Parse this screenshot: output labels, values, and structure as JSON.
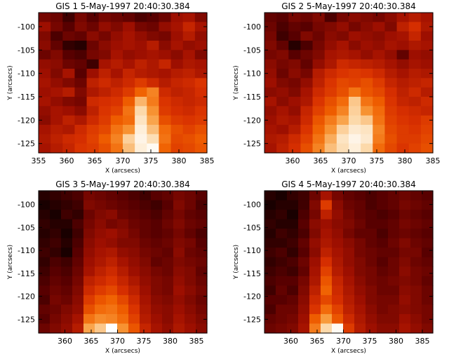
{
  "colors": {
    "background": "#ffffff",
    "axis": "#000000",
    "colormap": [
      "#000000",
      "#5a0000",
      "#a01000",
      "#d83000",
      "#f06000",
      "#f89838",
      "#fcd8a8",
      "#ffffff"
    ]
  },
  "chart_data": [
    {
      "type": "heatmap",
      "title": "GIS 1  5-May-1997 20:40:30.384",
      "xlabel": "X (arcsecs)",
      "ylabel": "Y (arcsecs)",
      "xlim": [
        355,
        385
      ],
      "ylim": [
        -127,
        -97
      ],
      "xticks": [
        355,
        360,
        365,
        370,
        375,
        380,
        385
      ],
      "yticks": [
        -125,
        -120,
        -115,
        -110,
        -105,
        -100
      ],
      "grid": false,
      "colormap": "red-temperature",
      "values": [
        [
          0.2,
          0.18,
          0.1,
          0.2,
          0.14,
          0.2,
          0.18,
          0.16,
          0.12,
          0.14,
          0.18,
          0.28,
          0.3,
          0.22
        ],
        [
          0.28,
          0.2,
          0.14,
          0.22,
          0.18,
          0.26,
          0.22,
          0.28,
          0.2,
          0.18,
          0.26,
          0.3,
          0.38,
          0.3
        ],
        [
          0.22,
          0.12,
          0.18,
          0.16,
          0.24,
          0.2,
          0.26,
          0.3,
          0.26,
          0.22,
          0.2,
          0.28,
          0.34,
          0.26
        ],
        [
          0.24,
          0.16,
          0.08,
          0.06,
          0.18,
          0.24,
          0.28,
          0.3,
          0.28,
          0.34,
          0.24,
          0.3,
          0.26,
          0.28
        ],
        [
          0.18,
          0.22,
          0.14,
          0.12,
          0.2,
          0.22,
          0.3,
          0.26,
          0.28,
          0.3,
          0.28,
          0.24,
          0.3,
          0.22
        ],
        [
          0.26,
          0.24,
          0.18,
          0.16,
          0.1,
          0.3,
          0.34,
          0.3,
          0.36,
          0.32,
          0.38,
          0.28,
          0.32,
          0.3
        ],
        [
          0.28,
          0.22,
          0.3,
          0.14,
          0.28,
          0.36,
          0.3,
          0.38,
          0.34,
          0.32,
          0.3,
          0.34,
          0.36,
          0.32
        ],
        [
          0.3,
          0.26,
          0.22,
          0.18,
          0.36,
          0.4,
          0.36,
          0.4,
          0.46,
          0.4,
          0.34,
          0.38,
          0.4,
          0.44
        ],
        [
          0.28,
          0.3,
          0.34,
          0.22,
          0.32,
          0.36,
          0.4,
          0.46,
          0.58,
          0.66,
          0.4,
          0.36,
          0.38,
          0.42
        ],
        [
          0.3,
          0.26,
          0.22,
          0.2,
          0.4,
          0.42,
          0.44,
          0.56,
          0.78,
          0.64,
          0.44,
          0.4,
          0.38,
          0.4
        ],
        [
          0.26,
          0.3,
          0.28,
          0.24,
          0.36,
          0.44,
          0.48,
          0.62,
          0.86,
          0.7,
          0.46,
          0.42,
          0.4,
          0.44
        ],
        [
          0.24,
          0.3,
          0.36,
          0.32,
          0.4,
          0.46,
          0.56,
          0.6,
          0.9,
          0.74,
          0.52,
          0.46,
          0.44,
          0.46
        ],
        [
          0.3,
          0.34,
          0.32,
          0.4,
          0.46,
          0.5,
          0.62,
          0.7,
          0.94,
          0.8,
          0.6,
          0.52,
          0.48,
          0.52
        ],
        [
          0.32,
          0.36,
          0.4,
          0.42,
          0.48,
          0.56,
          0.66,
          0.84,
          0.96,
          0.88,
          0.62,
          0.5,
          0.52,
          0.56
        ],
        [
          0.3,
          0.34,
          0.38,
          0.44,
          0.46,
          0.52,
          0.62,
          0.8,
          0.94,
          0.98,
          0.58,
          0.48,
          0.5,
          0.54
        ]
      ]
    },
    {
      "type": "heatmap",
      "title": "GIS 2  5-May-1997 20:40:30.384",
      "xlabel": "X (arcsecs)",
      "ylabel": "Y (arcsecs)",
      "xlim": [
        355,
        385
      ],
      "ylim": [
        -127,
        -97
      ],
      "xticks": [
        360,
        365,
        370,
        375,
        380,
        385
      ],
      "yticks": [
        -125,
        -120,
        -115,
        -110,
        -105,
        -100
      ],
      "grid": false,
      "colormap": "red-temperature",
      "values": [
        [
          0.16,
          0.14,
          0.2,
          0.18,
          0.22,
          0.12,
          0.2,
          0.24,
          0.22,
          0.2,
          0.24,
          0.3,
          0.34,
          0.3
        ],
        [
          0.18,
          0.12,
          0.16,
          0.14,
          0.2,
          0.22,
          0.26,
          0.2,
          0.24,
          0.28,
          0.22,
          0.36,
          0.42,
          0.32
        ],
        [
          0.2,
          0.1,
          0.14,
          0.22,
          0.18,
          0.24,
          0.22,
          0.28,
          0.26,
          0.24,
          0.28,
          0.3,
          0.38,
          0.28
        ],
        [
          0.22,
          0.16,
          0.06,
          0.12,
          0.2,
          0.26,
          0.3,
          0.24,
          0.28,
          0.26,
          0.3,
          0.28,
          0.32,
          0.3
        ],
        [
          0.2,
          0.22,
          0.14,
          0.18,
          0.22,
          0.3,
          0.32,
          0.3,
          0.26,
          0.3,
          0.26,
          0.16,
          0.28,
          0.26
        ],
        [
          0.24,
          0.2,
          0.22,
          0.16,
          0.26,
          0.32,
          0.4,
          0.38,
          0.36,
          0.34,
          0.3,
          0.26,
          0.3,
          0.28
        ],
        [
          0.26,
          0.18,
          0.24,
          0.2,
          0.34,
          0.4,
          0.44,
          0.46,
          0.44,
          0.4,
          0.34,
          0.3,
          0.34,
          0.32
        ],
        [
          0.28,
          0.22,
          0.2,
          0.26,
          0.36,
          0.44,
          0.5,
          0.48,
          0.52,
          0.46,
          0.38,
          0.34,
          0.36,
          0.38
        ],
        [
          0.24,
          0.26,
          0.22,
          0.3,
          0.4,
          0.46,
          0.52,
          0.62,
          0.54,
          0.5,
          0.42,
          0.36,
          0.4,
          0.34
        ],
        [
          0.3,
          0.24,
          0.28,
          0.32,
          0.44,
          0.52,
          0.6,
          0.82,
          0.62,
          0.56,
          0.44,
          0.38,
          0.36,
          0.4
        ],
        [
          0.26,
          0.3,
          0.26,
          0.38,
          0.48,
          0.56,
          0.66,
          0.84,
          0.7,
          0.6,
          0.46,
          0.42,
          0.4,
          0.38
        ],
        [
          0.28,
          0.32,
          0.3,
          0.4,
          0.54,
          0.64,
          0.74,
          0.86,
          0.82,
          0.62,
          0.48,
          0.44,
          0.42,
          0.46
        ],
        [
          0.3,
          0.28,
          0.34,
          0.44,
          0.58,
          0.7,
          0.84,
          0.92,
          0.9,
          0.66,
          0.5,
          0.46,
          0.44,
          0.48
        ],
        [
          0.32,
          0.34,
          0.4,
          0.48,
          0.62,
          0.76,
          0.9,
          0.96,
          0.92,
          0.64,
          0.52,
          0.46,
          0.46,
          0.5
        ],
        [
          0.3,
          0.36,
          0.42,
          0.52,
          0.66,
          0.8,
          0.88,
          0.94,
          0.86,
          0.6,
          0.5,
          0.44,
          0.48,
          0.52
        ]
      ]
    },
    {
      "type": "heatmap",
      "title": "GIS 3  5-May-1997 20:40:30.384",
      "xlabel": "X (arcsecs)",
      "ylabel": "Y (arcsecs)",
      "xlim": [
        355,
        387
      ],
      "ylim": [
        -128,
        -97
      ],
      "xticks": [
        360,
        365,
        370,
        375,
        380,
        385
      ],
      "yticks": [
        -125,
        -120,
        -115,
        -110,
        -105,
        -100
      ],
      "grid": false,
      "colormap": "red-temperature",
      "values": [
        [
          0.06,
          0.08,
          0.1,
          0.12,
          0.2,
          0.18,
          0.16,
          0.14,
          0.12,
          0.1,
          0.14,
          0.16,
          0.2,
          0.18,
          0.14
        ],
        [
          0.04,
          0.06,
          0.08,
          0.1,
          0.22,
          0.2,
          0.18,
          0.16,
          0.14,
          0.12,
          0.1,
          0.14,
          0.22,
          0.18,
          0.12
        ],
        [
          0.06,
          0.04,
          0.1,
          0.08,
          0.18,
          0.22,
          0.24,
          0.18,
          0.16,
          0.14,
          0.12,
          0.16,
          0.2,
          0.16,
          0.14
        ],
        [
          0.08,
          0.06,
          0.06,
          0.12,
          0.2,
          0.24,
          0.2,
          0.22,
          0.18,
          0.16,
          0.14,
          0.18,
          0.22,
          0.18,
          0.16
        ],
        [
          0.06,
          0.08,
          0.04,
          0.1,
          0.22,
          0.26,
          0.28,
          0.24,
          0.2,
          0.16,
          0.14,
          0.16,
          0.2,
          0.16,
          0.12
        ],
        [
          0.08,
          0.1,
          0.06,
          0.12,
          0.24,
          0.28,
          0.26,
          0.22,
          0.22,
          0.18,
          0.16,
          0.18,
          0.22,
          0.2,
          0.14
        ],
        [
          0.1,
          0.08,
          0.04,
          0.14,
          0.26,
          0.3,
          0.32,
          0.26,
          0.24,
          0.2,
          0.18,
          0.16,
          0.24,
          0.18,
          0.16
        ],
        [
          0.08,
          0.12,
          0.1,
          0.16,
          0.28,
          0.32,
          0.36,
          0.3,
          0.26,
          0.22,
          0.16,
          0.18,
          0.22,
          0.2,
          0.18
        ],
        [
          0.1,
          0.14,
          0.12,
          0.18,
          0.3,
          0.36,
          0.4,
          0.34,
          0.28,
          0.24,
          0.2,
          0.18,
          0.24,
          0.22,
          0.16
        ],
        [
          0.12,
          0.16,
          0.14,
          0.2,
          0.36,
          0.4,
          0.44,
          0.38,
          0.32,
          0.26,
          0.22,
          0.2,
          0.26,
          0.22,
          0.18
        ],
        [
          0.14,
          0.18,
          0.16,
          0.22,
          0.4,
          0.46,
          0.5,
          0.42,
          0.36,
          0.28,
          0.22,
          0.2,
          0.28,
          0.24,
          0.2
        ],
        [
          0.12,
          0.2,
          0.18,
          0.24,
          0.46,
          0.54,
          0.58,
          0.5,
          0.4,
          0.3,
          0.24,
          0.22,
          0.26,
          0.22,
          0.18
        ],
        [
          0.16,
          0.18,
          0.22,
          0.26,
          0.52,
          0.6,
          0.62,
          0.56,
          0.44,
          0.32,
          0.26,
          0.24,
          0.28,
          0.24,
          0.2
        ],
        [
          0.14,
          0.2,
          0.24,
          0.3,
          0.62,
          0.68,
          0.66,
          0.6,
          0.48,
          0.34,
          0.28,
          0.24,
          0.3,
          0.26,
          0.22
        ],
        [
          0.18,
          0.22,
          0.26,
          0.34,
          0.74,
          0.82,
          1.0,
          0.7,
          0.54,
          0.38,
          0.3,
          0.26,
          0.32,
          0.28,
          0.24
        ]
      ]
    },
    {
      "type": "heatmap",
      "title": "GIS 4  5-May-1997 20:40:30.384",
      "xlabel": "X (arcsecs)",
      "ylabel": "Y (arcsecs)",
      "xlim": [
        355,
        387
      ],
      "ylim": [
        -128,
        -97
      ],
      "xticks": [
        360,
        365,
        370,
        375,
        380,
        385
      ],
      "yticks": [
        -125,
        -120,
        -115,
        -110,
        -105,
        -100
      ],
      "grid": false,
      "colormap": "red-temperature",
      "values": [
        [
          0.06,
          0.04,
          0.08,
          0.1,
          0.18,
          0.3,
          0.2,
          0.16,
          0.14,
          0.12,
          0.14,
          0.16,
          0.18,
          0.16,
          0.14
        ],
        [
          0.04,
          0.06,
          0.06,
          0.1,
          0.22,
          0.46,
          0.24,
          0.18,
          0.16,
          0.12,
          0.14,
          0.16,
          0.2,
          0.18,
          0.16
        ],
        [
          0.06,
          0.08,
          0.04,
          0.12,
          0.2,
          0.36,
          0.26,
          0.2,
          0.16,
          0.14,
          0.12,
          0.14,
          0.18,
          0.16,
          0.14
        ],
        [
          0.08,
          0.06,
          0.06,
          0.14,
          0.24,
          0.28,
          0.24,
          0.22,
          0.18,
          0.14,
          0.14,
          0.16,
          0.2,
          0.18,
          0.16
        ],
        [
          0.06,
          0.1,
          0.08,
          0.12,
          0.22,
          0.3,
          0.26,
          0.2,
          0.16,
          0.16,
          0.12,
          0.16,
          0.18,
          0.16,
          0.14
        ],
        [
          0.08,
          0.08,
          0.1,
          0.16,
          0.26,
          0.32,
          0.28,
          0.24,
          0.2,
          0.16,
          0.14,
          0.18,
          0.22,
          0.18,
          0.16
        ],
        [
          0.1,
          0.12,
          0.08,
          0.14,
          0.24,
          0.36,
          0.3,
          0.26,
          0.2,
          0.18,
          0.16,
          0.16,
          0.2,
          0.2,
          0.14
        ],
        [
          0.08,
          0.1,
          0.12,
          0.18,
          0.28,
          0.42,
          0.32,
          0.26,
          0.22,
          0.18,
          0.14,
          0.18,
          0.22,
          0.18,
          0.16
        ],
        [
          0.1,
          0.12,
          0.1,
          0.16,
          0.3,
          0.48,
          0.34,
          0.28,
          0.22,
          0.2,
          0.16,
          0.18,
          0.24,
          0.2,
          0.18
        ],
        [
          0.12,
          0.14,
          0.14,
          0.2,
          0.32,
          0.54,
          0.38,
          0.3,
          0.24,
          0.2,
          0.18,
          0.2,
          0.22,
          0.2,
          0.16
        ],
        [
          0.1,
          0.16,
          0.12,
          0.22,
          0.36,
          0.58,
          0.4,
          0.32,
          0.26,
          0.22,
          0.18,
          0.18,
          0.24,
          0.22,
          0.18
        ],
        [
          0.14,
          0.14,
          0.16,
          0.24,
          0.4,
          0.5,
          0.42,
          0.34,
          0.28,
          0.22,
          0.2,
          0.2,
          0.26,
          0.22,
          0.18
        ],
        [
          0.12,
          0.18,
          0.18,
          0.26,
          0.44,
          0.6,
          0.48,
          0.36,
          0.3,
          0.24,
          0.2,
          0.22,
          0.24,
          0.22,
          0.2
        ],
        [
          0.16,
          0.18,
          0.2,
          0.28,
          0.56,
          0.72,
          0.54,
          0.4,
          0.32,
          0.26,
          0.22,
          0.22,
          0.28,
          0.24,
          0.2
        ],
        [
          0.18,
          0.2,
          0.22,
          0.3,
          0.64,
          0.86,
          0.98,
          0.46,
          0.34,
          0.28,
          0.24,
          0.24,
          0.3,
          0.26,
          0.22
        ]
      ]
    }
  ]
}
